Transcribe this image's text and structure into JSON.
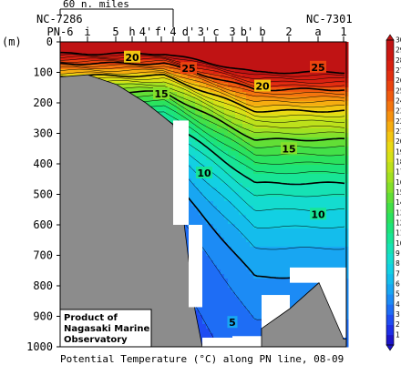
{
  "chart_data": {
    "type": "heatmap",
    "title": "Potential Temperature (°C) along PN line, 08-09",
    "ylabel": "(m)",
    "ylim": [
      1000,
      0
    ],
    "yticks": [
      0,
      100,
      200,
      300,
      400,
      500,
      600,
      700,
      800,
      900,
      1000
    ],
    "station_labels": [
      "PN-6",
      "i",
      "5",
      "h",
      "4'",
      "f'",
      "4",
      "d'",
      "3'",
      "c",
      "3",
      "b'",
      "b",
      "2",
      "a",
      "1"
    ],
    "left_station_id": "NC-7286",
    "right_station_id": "NC-7301",
    "distance_scale_label": "60 n. miles",
    "credit": [
      "Product of",
      "Nagasaki Marine",
      "Observatory"
    ],
    "colorbar": {
      "min": 0,
      "max": 30,
      "step": 1,
      "labels": [
        1,
        2,
        3,
        4,
        5,
        6,
        7,
        8,
        9,
        10,
        11,
        12,
        13,
        14,
        15,
        16,
        17,
        18,
        19,
        20,
        21,
        22,
        23,
        24,
        25,
        26,
        27,
        28,
        29,
        30
      ]
    },
    "contour_labels": [
      {
        "value": 25,
        "station": "d'",
        "depth": 87
      },
      {
        "value": 25,
        "station": "a",
        "depth": 83
      },
      {
        "value": 20,
        "station": "h",
        "depth": 50
      },
      {
        "value": 20,
        "station": "b",
        "depth": 145
      },
      {
        "value": 15,
        "station": "f'",
        "depth": 170
      },
      {
        "value": 15,
        "station": "2",
        "depth": 350
      },
      {
        "value": 10,
        "station": "3'",
        "depth": 430
      },
      {
        "value": 10,
        "station": "a",
        "depth": 565
      },
      {
        "value": 5,
        "station": "3",
        "depth": 920
      }
    ]
  }
}
